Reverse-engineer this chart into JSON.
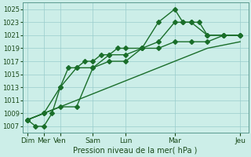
{
  "title": "",
  "xlabel": "Pression niveau de la mer( hPa )",
  "ylabel": "",
  "bg_color": "#cceee8",
  "grid_color": "#99cccc",
  "line_color": "#1a6e2a",
  "ylim": [
    1006,
    1026
  ],
  "yticks": [
    1007,
    1009,
    1011,
    1013,
    1015,
    1017,
    1019,
    1021,
    1023,
    1025
  ],
  "xtick_labels": [
    "Dim",
    "Mer",
    "Ven",
    "Sam",
    "Lun",
    "Mar",
    "Jeu"
  ],
  "xtick_positions": [
    0,
    1,
    2,
    4,
    6,
    9,
    13
  ],
  "xlim": [
    -0.3,
    13.5
  ],
  "line1_x": [
    0,
    0.5,
    1,
    1.5,
    2,
    2.5,
    3,
    3.5,
    4,
    4.5,
    5,
    5.5,
    6,
    7,
    8,
    9,
    10,
    11,
    12,
    13
  ],
  "line1_y": [
    1008,
    1007,
    1007,
    1009,
    1013,
    1016,
    1016,
    1017,
    1017,
    1018,
    1018,
    1019,
    1019,
    1019,
    1019,
    1020,
    1020,
    1020,
    1021,
    1021
  ],
  "line2_x": [
    0,
    1,
    2,
    3,
    4,
    5,
    6,
    7,
    8,
    9,
    10,
    11,
    12,
    13
  ],
  "line2_y": [
    1008,
    1009,
    1010,
    1011,
    1012,
    1013,
    1014,
    1015,
    1016,
    1017,
    1018,
    1019,
    1019.5,
    1020
  ],
  "line3_x": [
    0,
    1,
    2,
    3,
    4,
    5,
    6,
    7,
    8,
    9,
    9.5,
    10,
    10.5,
    11,
    12,
    13
  ],
  "line3_y": [
    1008,
    1009,
    1013,
    1016,
    1016,
    1018,
    1018,
    1019,
    1023,
    1025,
    1023,
    1023,
    1023,
    1021,
    1021,
    1021
  ],
  "line4_x": [
    0,
    1,
    2,
    3,
    4,
    5,
    6,
    7,
    8,
    9,
    9.5,
    10,
    11,
    12,
    13
  ],
  "line4_y": [
    1008,
    1009,
    1010,
    1010,
    1016,
    1017,
    1017,
    1019,
    1020,
    1023,
    1023,
    1023,
    1021,
    1021,
    1021
  ]
}
